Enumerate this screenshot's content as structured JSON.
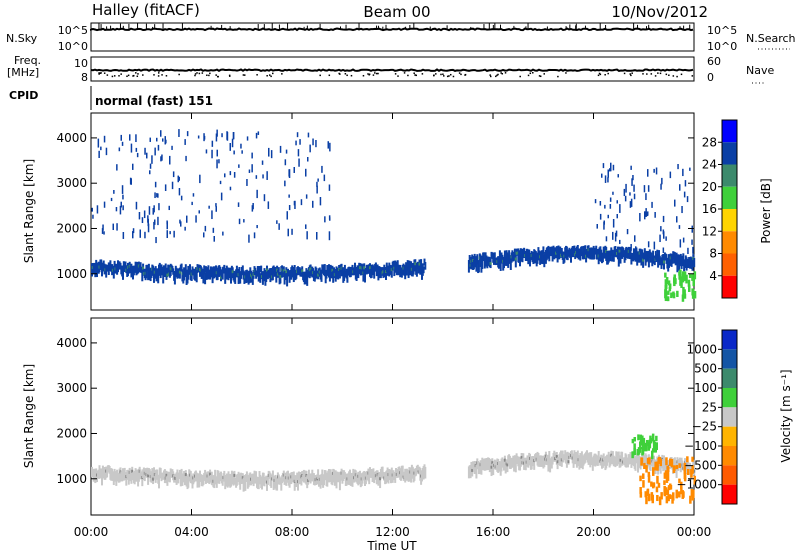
{
  "header": {
    "station": "Halley (fitACF)",
    "beam": "Beam 00",
    "date": "10/Nov/2012"
  },
  "panels": {
    "nsky": {
      "left_label": "N.Sky",
      "left_ticks": [
        "10^5",
        "10^0"
      ],
      "right_ticks": [
        "10^5",
        "10^0"
      ],
      "right_label": "N.Search"
    },
    "freq": {
      "left_label_1": "Freq.",
      "left_label_2": "[MHz]",
      "left_ticks": [
        "10",
        "8"
      ],
      "right_ticks": [
        "60",
        "0"
      ],
      "right_label": "Nave"
    },
    "cpid": {
      "label": "CPID",
      "mode": "normal (fast) 151"
    }
  },
  "chart_data": [
    {
      "type": "heatmap",
      "name": "power",
      "ylabel": "Slant Range [km]",
      "x_ticks": [
        "00:00",
        "04:00",
        "08:00",
        "12:00",
        "16:00",
        "20:00",
        "00:00"
      ],
      "x_tick_hours": [
        0,
        4,
        8,
        12,
        16,
        20,
        24
      ],
      "xlim_hours": [
        0,
        24
      ],
      "y_ticks": [
        1000,
        2000,
        3000,
        4000
      ],
      "ylim": [
        200,
        4550
      ],
      "colorbar": {
        "label": "Power [dB]",
        "ticks": [
          "4",
          "8",
          "12",
          "16",
          "20",
          "24",
          "28"
        ],
        "colors": [
          "#0000ff",
          "#0a3fa5",
          "#3c8a6c",
          "#3fd03a",
          "#ffd400",
          "#ff8a00",
          "#ff6000",
          "#ff0000"
        ]
      },
      "features": [
        {
          "kind": "echo-band",
          "t_start": 0.0,
          "t_end": 13.3,
          "range_start_km": 1250,
          "range_mid_km": 1100,
          "color": "#0a3fa5"
        },
        {
          "kind": "echo-band",
          "t_start": 15.0,
          "t_end": 24.0,
          "range_start_km": 1350,
          "range_mid_km": 1550,
          "color": "#0a3fa5"
        },
        {
          "kind": "scatter",
          "t_start": 0.0,
          "t_end": 9.5,
          "range_min_km": 1800,
          "range_max_km": 4200,
          "color": "#0a3fa5"
        },
        {
          "kind": "scatter",
          "t_start": 20.0,
          "t_end": 24.0,
          "range_min_km": 1500,
          "range_max_km": 3500,
          "color": "#0a3fa5"
        },
        {
          "kind": "patch",
          "t_start": 22.8,
          "t_end": 24.0,
          "range_min_km": 500,
          "range_max_km": 1100,
          "color": "#3fd03a"
        },
        {
          "kind": "gap",
          "t_start": 13.4,
          "t_end": 14.9
        }
      ]
    },
    {
      "type": "heatmap",
      "name": "velocity",
      "ylabel": "Slant Range [km]",
      "xlabel": "Time UT",
      "x_ticks": [
        "00:00",
        "04:00",
        "08:00",
        "12:00",
        "16:00",
        "20:00",
        "00:00"
      ],
      "x_tick_hours": [
        0,
        4,
        8,
        12,
        16,
        20,
        24
      ],
      "xlim_hours": [
        0,
        24
      ],
      "y_ticks": [
        1000,
        2000,
        3000,
        4000
      ],
      "ylim": [
        200,
        4550
      ],
      "colorbar": {
        "label": "Velocity [m s⁻¹]",
        "ticks": [
          "1000",
          "500",
          "100",
          "25",
          "−25",
          "−100",
          "−500",
          "−1000"
        ],
        "colors": [
          "#0a28c8",
          "#1455a5",
          "#3c8a6c",
          "#3fd03a",
          "#c8c8c8",
          "#ffb400",
          "#ff8a00",
          "#ff5a00",
          "#ff0000"
        ]
      },
      "features": [
        {
          "kind": "echo-band",
          "t_start": 0.0,
          "t_end": 13.3,
          "range_start_km": 1250,
          "range_mid_km": 1100,
          "color": "#c8c8c8"
        },
        {
          "kind": "echo-band",
          "t_start": 15.0,
          "t_end": 24.0,
          "range_start_km": 1350,
          "range_mid_km": 1550,
          "color": "#c8c8c8"
        },
        {
          "kind": "patch",
          "t_start": 21.8,
          "t_end": 24.0,
          "range_min_km": 600,
          "range_max_km": 1500,
          "color": "#ff8a00"
        },
        {
          "kind": "patch",
          "t_start": 21.5,
          "t_end": 22.5,
          "range_min_km": 1600,
          "range_max_km": 2000,
          "color": "#3fd03a"
        },
        {
          "kind": "gap",
          "t_start": 13.4,
          "t_end": 14.9
        }
      ]
    }
  ]
}
